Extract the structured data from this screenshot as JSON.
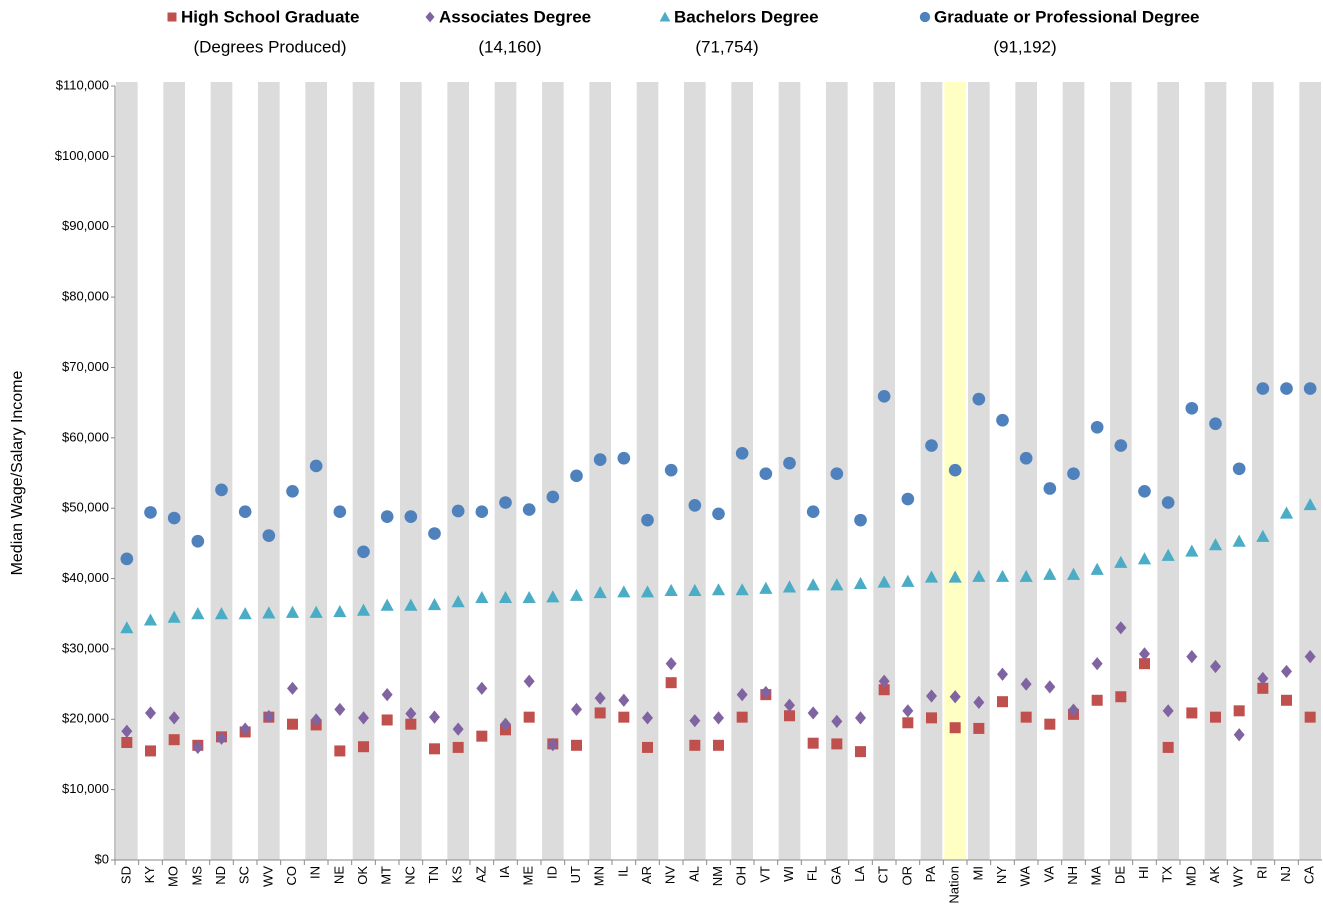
{
  "chart_data": {
    "type": "scatter",
    "y_label": "Median Wage/Salary Income",
    "legend_notes": [
      "(Degrees Produced)",
      "(14,160)",
      "(71,754)",
      "(91,192)"
    ],
    "categories": [
      "SD",
      "KY",
      "MO",
      "MS",
      "ND",
      "SC",
      "WV",
      "CO",
      "IN",
      "NE",
      "OK",
      "MT",
      "NC",
      "TN",
      "KS",
      "AZ",
      "IA",
      "ME",
      "ID",
      "UT",
      "MN",
      "IL",
      "AR",
      "NV",
      "AL",
      "NM",
      "OH",
      "VT",
      "WI",
      "FL",
      "GA",
      "LA",
      "CT",
      "OR",
      "PA",
      "Nation",
      "MI",
      "NY",
      "WA",
      "VA",
      "NH",
      "MA",
      "DE",
      "HI",
      "TX",
      "MD",
      "AK",
      "WY",
      "RI",
      "NJ",
      "CA"
    ],
    "highlight": 35,
    "highlight_color": "#ffffc4",
    "band_color": "#dcdcdc",
    "ylim": [
      0,
      110000
    ],
    "yticks": [
      {
        "value": 0,
        "label": "$0"
      },
      {
        "value": 10000,
        "label": "$10,000"
      },
      {
        "value": 20000,
        "label": "$20,000"
      },
      {
        "value": 30000,
        "label": "$30,000"
      },
      {
        "value": 40000,
        "label": "$40,000"
      },
      {
        "value": 50000,
        "label": "$50,000"
      },
      {
        "value": 60000,
        "label": "$60,000"
      },
      {
        "value": 70000,
        "label": "$70,000"
      },
      {
        "value": 80000,
        "label": "$80,000"
      },
      {
        "value": 90000,
        "label": "$90,000"
      },
      {
        "value": 100000,
        "label": "$100,000"
      },
      {
        "value": 110000,
        "label": "$110,000"
      }
    ],
    "series": [
      {
        "name": "High School Graduate",
        "color": "#c0504d",
        "marker": "square",
        "values": [
          16700,
          15500,
          17100,
          16300,
          17500,
          18200,
          20300,
          19300,
          19200,
          15500,
          16100,
          19900,
          19300,
          15800,
          16000,
          17600,
          18500,
          20300,
          16500,
          16300,
          20900,
          20300,
          16000,
          25200,
          16300,
          16300,
          20300,
          23500,
          20500,
          16600,
          16500,
          15400,
          24200,
          19500,
          20200,
          18800,
          18700,
          22500,
          20300,
          19300,
          20700,
          22700,
          23200,
          27900,
          16000,
          20900,
          20300,
          21200,
          24400,
          22700,
          20300
        ]
      },
      {
        "name": "Associates Degree",
        "color": "#8064a2",
        "marker": "diamond",
        "values": [
          18300,
          20900,
          20200,
          16000,
          17300,
          18600,
          20400,
          24400,
          19900,
          21400,
          20200,
          23500,
          20800,
          20300,
          18600,
          24400,
          19300,
          25400,
          16400,
          21400,
          23000,
          22700,
          20200,
          27900,
          19800,
          20200,
          23500,
          23800,
          22000,
          20900,
          19700,
          20200,
          25400,
          21200,
          23300,
          23200,
          22400,
          26400,
          25000,
          24600,
          21300,
          27900,
          33000,
          29300,
          21200,
          28900,
          27500,
          17800,
          25800,
          26800,
          28900
        ]
      },
      {
        "name": "Bachelors Degree",
        "color": "#4bacc6",
        "marker": "triangle",
        "values": [
          33000,
          34100,
          34500,
          35000,
          35000,
          35000,
          35100,
          35200,
          35200,
          35300,
          35500,
          36200,
          36200,
          36300,
          36700,
          37300,
          37300,
          37300,
          37400,
          37600,
          38000,
          38100,
          38100,
          38300,
          38300,
          38400,
          38400,
          38600,
          38800,
          39100,
          39100,
          39300,
          39500,
          39600,
          40200,
          40200,
          40300,
          40300,
          40300,
          40600,
          40600,
          41300,
          42300,
          42800,
          43300,
          43900,
          44800,
          45300,
          46000,
          49300,
          50500
        ]
      },
      {
        "name": "Graduate or Professional Degree",
        "color": "#4f81bd",
        "marker": "circle",
        "values": [
          42800,
          49400,
          48600,
          45300,
          52600,
          49500,
          46100,
          52400,
          56000,
          49500,
          43800,
          48800,
          48800,
          46400,
          49600,
          49500,
          50800,
          49800,
          51600,
          54600,
          56900,
          57100,
          48300,
          55400,
          50400,
          49200,
          57800,
          54900,
          56400,
          49500,
          54900,
          48300,
          65900,
          51300,
          58900,
          55400,
          65500,
          62500,
          57100,
          52800,
          54900,
          61500,
          58900,
          52400,
          50800,
          64200,
          62000,
          55600,
          67000,
          67000,
          67000
        ]
      }
    ]
  }
}
